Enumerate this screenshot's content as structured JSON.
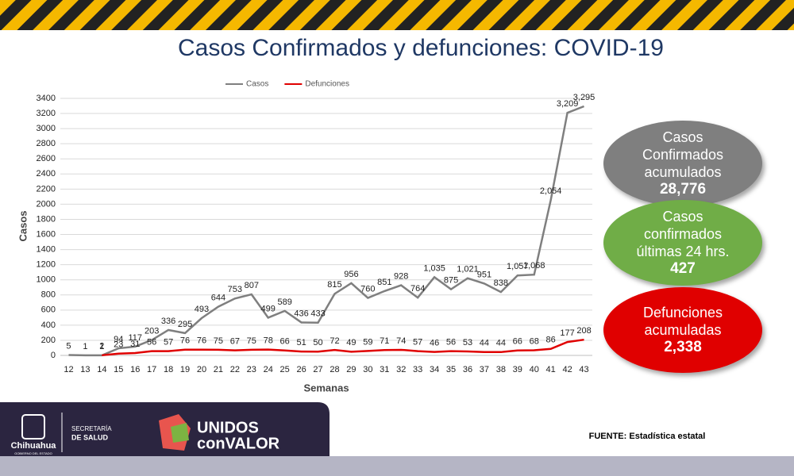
{
  "chart_data": {
    "type": "line",
    "title": "Casos Confirmados y defunciones: COVID-19",
    "x_label": "Semanas",
    "y_label": "Casos",
    "categories": [
      "12",
      "13",
      "14",
      "15",
      "16",
      "17",
      "18",
      "19",
      "20",
      "21",
      "22",
      "23",
      "24",
      "25",
      "26",
      "27",
      "28",
      "29",
      "30",
      "31",
      "32",
      "33",
      "34",
      "35",
      "36",
      "37",
      "38",
      "39",
      "40",
      "41",
      "42",
      "43"
    ],
    "series": [
      {
        "name": "Casos",
        "color": "#7f7f7f",
        "values": [
          5,
          1,
          1,
          94,
          117,
          203,
          336,
          295,
          493,
          644,
          753,
          807,
          499,
          589,
          436,
          433,
          815,
          956,
          760,
          851,
          928,
          764,
          1035,
          875,
          1021,
          951,
          838,
          1057,
          1068,
          2054,
          3209,
          3295
        ],
        "value_labels": [
          "5",
          "1",
          "1",
          "94",
          "117",
          "203",
          "336",
          "295",
          "493",
          "644",
          "753",
          "807",
          "499",
          "589",
          "436",
          "433",
          "815",
          "956",
          "760",
          "851",
          "928",
          "764",
          "1,035",
          "875",
          "1,021",
          "951",
          "838",
          "1,057",
          "1,068",
          "2,054",
          "3,209",
          "3,295"
        ]
      },
      {
        "name": "Defunciones",
        "color": "#e00000",
        "values": [
          null,
          null,
          2,
          23,
          31,
          56,
          57,
          76,
          76,
          75,
          67,
          75,
          78,
          66,
          51,
          50,
          72,
          49,
          59,
          71,
          74,
          57,
          46,
          56,
          53,
          44,
          44,
          66,
          68,
          86,
          177,
          208
        ]
      }
    ],
    "ylim": [
      0,
      3400
    ],
    "yticks": [
      0,
      200,
      400,
      600,
      800,
      1000,
      1200,
      1400,
      1600,
      1800,
      2000,
      2200,
      2400,
      2600,
      2800,
      3000,
      3200,
      3400
    ],
    "grid": true,
    "legend": "top"
  },
  "callouts": [
    {
      "label": "Casos Confirmados acumulados",
      "value": "28,776",
      "color": "#7f7f7f"
    },
    {
      "label": "Casos confirmados últimas 24 hrs.",
      "value": "427",
      "color": "#70ad47"
    },
    {
      "label": "Defunciones acumuladas",
      "value": "2,338",
      "color": "#e00000"
    }
  ],
  "footer": {
    "state": "Chihuahua",
    "state_sub": "GOBIERNO DEL ESTADO",
    "dept_1": "SECRETARÍA",
    "dept_2": "DE SALUD",
    "slogan_1": "UNIDOS",
    "slogan_2": "conVALOR",
    "source": "FUENTE: Estadística estatal"
  }
}
